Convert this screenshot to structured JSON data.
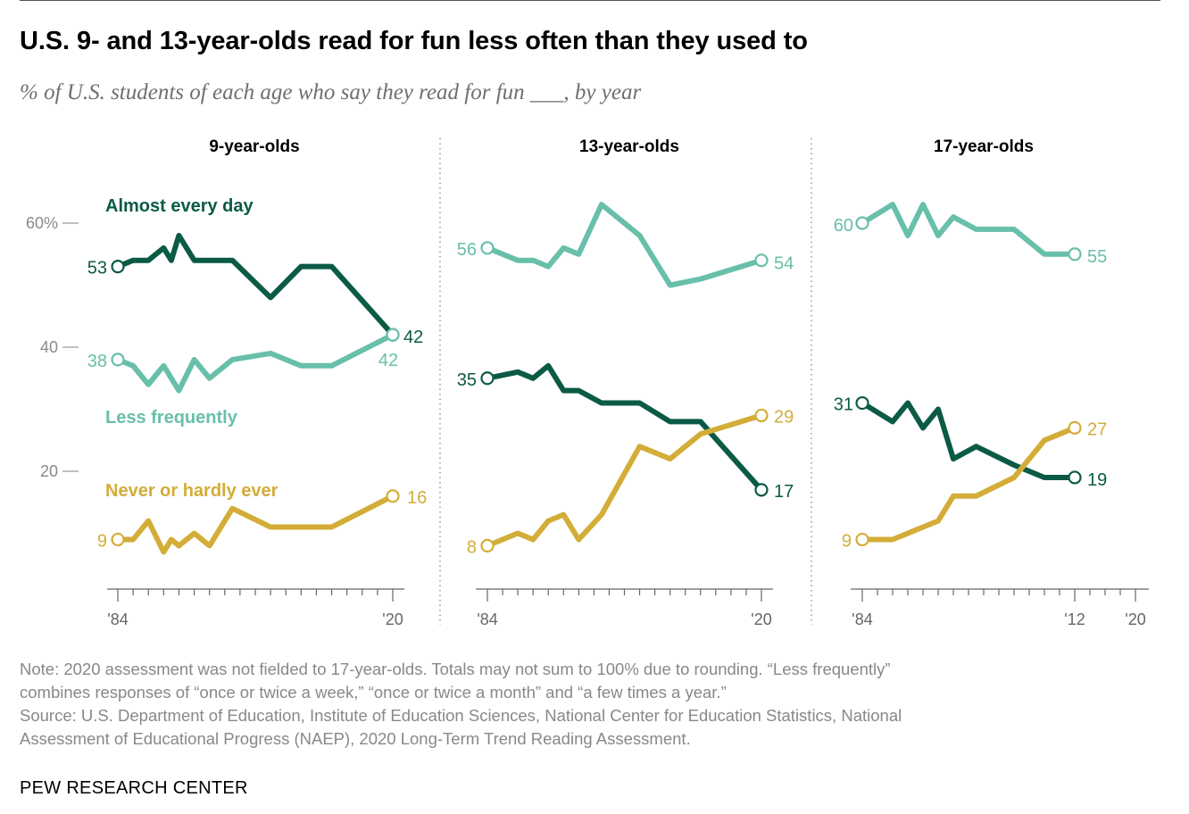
{
  "header": {
    "title": "U.S. 9- and 13-year-olds read for fun less often than they used to",
    "subtitle": "% of U.S. students of each age who say they read for fun ___, by year"
  },
  "colors": {
    "almost_every_day": "#0b5a46",
    "less_frequently": "#68bfaa",
    "never_or_hardly_ever": "#d3ad38",
    "axis": "#666666",
    "divider": "#999999"
  },
  "chart_data": [
    {
      "type": "line",
      "title": "9-year-olds",
      "y_ticks": [
        "60%",
        "40",
        "20"
      ],
      "ylim": [
        0,
        62
      ],
      "x_tick_labels": [
        "'84",
        "'20"
      ],
      "series": [
        {
          "name": "Almost every day",
          "start_label": "53",
          "end_label": "42",
          "x": [
            1984,
            1986,
            1988,
            1990,
            1991,
            1992,
            1994,
            1996,
            1999,
            2004,
            2008,
            2012,
            2020
          ],
          "values": [
            53,
            54,
            54,
            56,
            54,
            58,
            54,
            54,
            54,
            48,
            53,
            53,
            42
          ]
        },
        {
          "name": "Less frequently",
          "start_label": "38",
          "end_label": "42",
          "x": [
            1984,
            1986,
            1988,
            1990,
            1991,
            1992,
            1994,
            1996,
            1999,
            2004,
            2008,
            2012,
            2020
          ],
          "values": [
            38,
            37,
            34,
            37,
            35,
            33,
            38,
            35,
            38,
            39,
            37,
            37,
            42
          ]
        },
        {
          "name": "Never or hardly ever",
          "start_label": "9",
          "end_label": "16",
          "x": [
            1984,
            1986,
            1988,
            1990,
            1991,
            1992,
            1994,
            1996,
            1999,
            2004,
            2008,
            2012,
            2020
          ],
          "values": [
            9,
            9,
            12,
            7,
            9,
            8,
            10,
            8,
            14,
            11,
            11,
            11,
            16
          ]
        }
      ]
    },
    {
      "type": "line",
      "title": "13-year-olds",
      "x_tick_labels": [
        "'84",
        "'20"
      ],
      "series": [
        {
          "name": "",
          "start_label": "35",
          "end_label": "17",
          "x": [
            1984,
            1988,
            1990,
            1992,
            1994,
            1996,
            1999,
            2004,
            2008,
            2012,
            2020
          ],
          "values": [
            35,
            36,
            35,
            37,
            33,
            33,
            31,
            31,
            28,
            28,
            17
          ]
        },
        {
          "name": "",
          "start_label": "56",
          "end_label": "54",
          "x": [
            1984,
            1988,
            1990,
            1992,
            1994,
            1996,
            1999,
            2004,
            2008,
            2012,
            2020
          ],
          "values": [
            56,
            54,
            54,
            53,
            56,
            55,
            63,
            58,
            50,
            51,
            54
          ]
        },
        {
          "name": "",
          "start_label": "8",
          "end_label": "29",
          "x": [
            1984,
            1988,
            1990,
            1992,
            1994,
            1996,
            1999,
            2004,
            2008,
            2012,
            2020
          ],
          "values": [
            8,
            10,
            9,
            12,
            13,
            9,
            13,
            24,
            22,
            26,
            29
          ]
        }
      ]
    },
    {
      "type": "line",
      "title": "17-year-olds",
      "x_tick_labels": [
        "'84",
        "'12",
        "'20"
      ],
      "series": [
        {
          "name": "",
          "start_label": "60",
          "end_label": "55",
          "x": [
            1984,
            1988,
            1990,
            1992,
            1994,
            1996,
            1999,
            2004,
            2008,
            2012
          ],
          "values": [
            60,
            63,
            58,
            63,
            58,
            61,
            59,
            59,
            55,
            55
          ]
        },
        {
          "name": "",
          "start_label": "31",
          "end_label": "19",
          "x": [
            1984,
            1988,
            1990,
            1992,
            1994,
            1996,
            1999,
            2004,
            2008,
            2012
          ],
          "values": [
            31,
            28,
            31,
            27,
            30,
            22,
            24,
            21,
            19,
            19
          ]
        },
        {
          "name": "",
          "start_label": "9",
          "end_label": "27",
          "x": [
            1984,
            1988,
            1990,
            1992,
            1994,
            1996,
            1999,
            2004,
            2008,
            2012
          ],
          "values": [
            9,
            9,
            10,
            11,
            12,
            16,
            16,
            19,
            25,
            27
          ]
        }
      ]
    }
  ],
  "footer": {
    "note_line1": "Note: 2020 assessment was not fielded to 17-year-olds. Totals may not sum to 100% due to rounding. “Less frequently”",
    "note_line2": "combines responses of “once or twice a week,” “once or twice a month” and “a few times a year.”",
    "source_line1": "Source: U.S. Department of Education, Institute of Education Sciences, National Center for Education Statistics, National",
    "source_line2": "Assessment of Educational Progress (NAEP), 2020 Long-Term Trend Reading Assessment.",
    "brand": "PEW RESEARCH CENTER"
  }
}
